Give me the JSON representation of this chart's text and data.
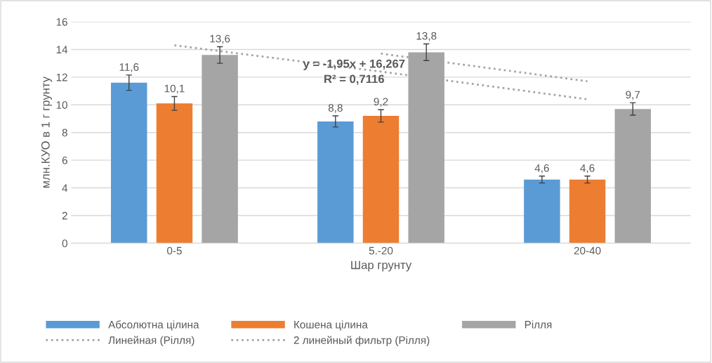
{
  "chart_data": {
    "type": "bar",
    "xlabel": "Шар грунту",
    "ylabel": "млн.КУО в 1 г грунту",
    "categories": [
      "0-5",
      "5.-20",
      "20-40"
    ],
    "series": [
      {
        "name": "Абсолютна цілина",
        "color": "#5b9bd5",
        "values": [
          11.6,
          8.8,
          4.6
        ],
        "errors": [
          0.55,
          0.4,
          0.25
        ],
        "value_labels": [
          "11,6",
          "8,8",
          "4,6"
        ]
      },
      {
        "name": "Кошена цілина",
        "color": "#ed7d31",
        "values": [
          10.1,
          9.2,
          4.6
        ],
        "errors": [
          0.5,
          0.45,
          0.25
        ],
        "value_labels": [
          "10,1",
          "9,2",
          "4,6"
        ]
      },
      {
        "name": "Рілля",
        "color": "#a5a5a5",
        "values": [
          13.6,
          13.8,
          9.7
        ],
        "errors": [
          0.6,
          0.6,
          0.45
        ],
        "value_labels": [
          "13,6",
          "13,8",
          "9,7"
        ]
      },
      {
        "name": "Линейная (Рілля)",
        "type": "line",
        "color": "#a5a5a5",
        "line_style": "dotted",
        "values": [
          14.3,
          12.4,
          10.4
        ]
      },
      {
        "name": "2 линейный фильтр (Рілля)",
        "type": "line",
        "color": "#a5a5a5",
        "line_style": "dotted",
        "values": [
          null,
          13.7,
          11.7
        ]
      }
    ],
    "annotations": [
      "y = -1,95x + 16,267",
      "R² = 0,7116"
    ],
    "ylim": [
      0,
      16
    ],
    "yticks": [
      0,
      2,
      4,
      6,
      8,
      10,
      12,
      14,
      16
    ],
    "grid": "y",
    "legend": "bottom"
  }
}
